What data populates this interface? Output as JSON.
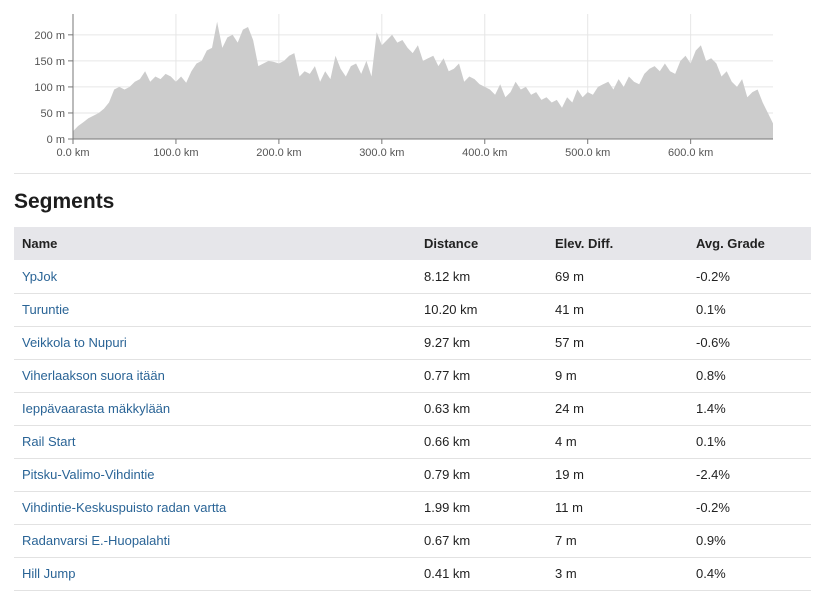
{
  "chart_data": {
    "type": "area",
    "xlabel": "",
    "ylabel": "",
    "x_unit": "km",
    "y_unit": "m",
    "xlim": [
      0,
      680
    ],
    "ylim": [
      0,
      240
    ],
    "grid": true,
    "x_ticks": [
      0,
      100,
      200,
      300,
      400,
      500,
      600
    ],
    "x_tick_labels": [
      "0.0 km",
      "100.0 km",
      "200.0 km",
      "300.0 km",
      "400.0 km",
      "500.0 km",
      "600.0 km"
    ],
    "y_ticks": [
      0,
      50,
      100,
      150,
      200
    ],
    "y_tick_labels": [
      "0 m",
      "50 m",
      "100 m",
      "150 m",
      "200 m"
    ],
    "fill_color": "#cccccc",
    "series": [
      {
        "x": [
          0,
          5,
          10,
          15,
          20,
          25,
          30,
          35,
          40,
          45,
          50,
          55,
          60,
          65,
          70,
          75,
          80,
          85,
          90,
          95,
          100,
          105,
          110,
          115,
          120,
          125,
          130,
          135,
          140,
          145,
          150,
          155,
          160,
          165,
          170,
          175,
          180,
          185,
          190,
          195,
          200,
          205,
          210,
          215,
          220,
          225,
          230,
          235,
          240,
          245,
          250,
          255,
          260,
          265,
          270,
          275,
          280,
          285,
          290,
          295,
          300,
          305,
          310,
          315,
          320,
          325,
          330,
          335,
          340,
          345,
          350,
          355,
          360,
          365,
          370,
          375,
          380,
          385,
          390,
          395,
          400,
          405,
          410,
          415,
          420,
          425,
          430,
          435,
          440,
          445,
          450,
          455,
          460,
          465,
          470,
          475,
          480,
          485,
          490,
          495,
          500,
          505,
          510,
          515,
          520,
          525,
          530,
          535,
          540,
          545,
          550,
          555,
          560,
          565,
          570,
          575,
          580,
          585,
          590,
          595,
          600,
          605,
          610,
          615,
          620,
          625,
          630,
          635,
          640,
          645,
          650,
          655,
          660,
          665,
          670,
          675,
          680
        ],
        "y": [
          15,
          25,
          32,
          40,
          45,
          50,
          58,
          70,
          95,
          100,
          95,
          100,
          110,
          115,
          130,
          110,
          120,
          115,
          125,
          120,
          110,
          120,
          108,
          130,
          145,
          150,
          170,
          175,
          225,
          175,
          195,
          200,
          185,
          210,
          215,
          190,
          140,
          145,
          150,
          148,
          145,
          150,
          160,
          165,
          120,
          130,
          125,
          140,
          110,
          130,
          115,
          160,
          135,
          120,
          140,
          145,
          125,
          150,
          120,
          205,
          180,
          190,
          200,
          185,
          190,
          175,
          165,
          180,
          150,
          155,
          160,
          140,
          155,
          130,
          135,
          145,
          110,
          120,
          115,
          105,
          100,
          95,
          85,
          105,
          80,
          90,
          110,
          95,
          100,
          85,
          90,
          75,
          80,
          70,
          75,
          60,
          80,
          70,
          95,
          80,
          90,
          85,
          100,
          105,
          110,
          95,
          115,
          100,
          120,
          110,
          105,
          125,
          135,
          140,
          130,
          145,
          130,
          125,
          150,
          160,
          145,
          170,
          180,
          150,
          155,
          145,
          120,
          130,
          110,
          100,
          115,
          80,
          90,
          95,
          70,
          50,
          30
        ]
      }
    ]
  },
  "segments": {
    "title": "Segments",
    "columns": [
      "Name",
      "Distance",
      "Elev. Diff.",
      "Avg. Grade"
    ],
    "rows": [
      {
        "name": "YpJok",
        "distance": "8.12 km",
        "elev": "69 m",
        "grade": "-0.2%"
      },
      {
        "name": "Turuntie",
        "distance": "10.20 km",
        "elev": "41 m",
        "grade": "0.1%"
      },
      {
        "name": "Veikkola to Nupuri",
        "distance": "9.27 km",
        "elev": "57 m",
        "grade": "-0.6%"
      },
      {
        "name": "Viherlaakson suora itään",
        "distance": "0.77 km",
        "elev": "9 m",
        "grade": "0.8%"
      },
      {
        "name": "Ieppävaarasta mäkkylään",
        "distance": "0.63 km",
        "elev": "24 m",
        "grade": "1.4%"
      },
      {
        "name": "Rail Start",
        "distance": "0.66 km",
        "elev": "4 m",
        "grade": "0.1%"
      },
      {
        "name": "Pitsku-Valimo-Vihdintie",
        "distance": "0.79 km",
        "elev": "19 m",
        "grade": "-2.4%"
      },
      {
        "name": "Vihdintie-Keskuspuisto radan vartta",
        "distance": "1.99 km",
        "elev": "11 m",
        "grade": "-0.2%"
      },
      {
        "name": "Radanvarsi E.-Huopalahti",
        "distance": "0.67 km",
        "elev": "7 m",
        "grade": "0.9%"
      },
      {
        "name": "Hill Jump",
        "distance": "0.41 km",
        "elev": "3 m",
        "grade": "0.4%"
      }
    ]
  }
}
